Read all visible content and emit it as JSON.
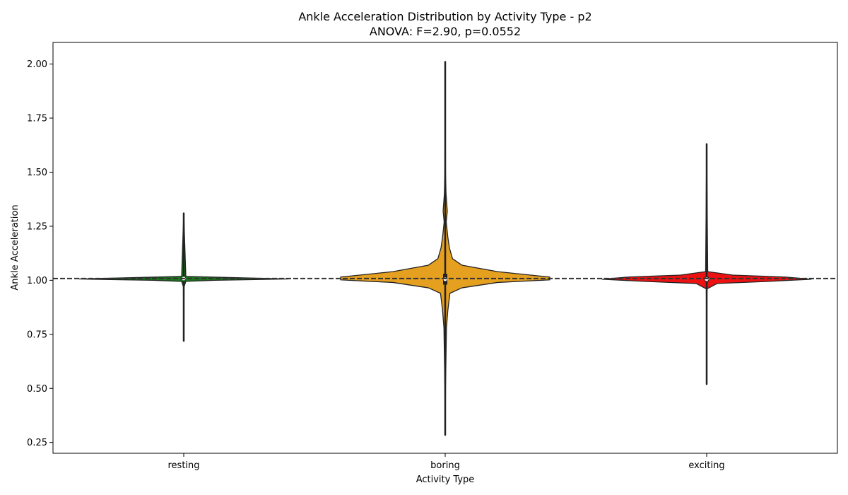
{
  "chart_data": {
    "type": "violin",
    "title": "Ankle Acceleration Distribution by Activity Type - p2",
    "subtitle": "ANOVA: F=2.90, p=0.0552",
    "xlabel": "Activity Type",
    "ylabel": "Ankle Acceleration",
    "categories": [
      "resting",
      "boring",
      "exciting"
    ],
    "ylim": [
      0.2,
      2.1
    ],
    "yticks": [
      0.25,
      0.5,
      0.75,
      1.0,
      1.25,
      1.5,
      1.75,
      2.0
    ],
    "ytick_labels": [
      "0.25",
      "0.50",
      "0.75",
      "1.00",
      "1.25",
      "1.50",
      "1.75",
      "2.00"
    ],
    "reference_line": {
      "value": 1.008,
      "style": "dashed",
      "color": "#333333"
    },
    "grid": false,
    "series": [
      {
        "category": "resting",
        "color": "#1a7a1a",
        "min": 0.72,
        "max": 1.31,
        "q1": 1.0,
        "median": 1.008,
        "q3": 1.015,
        "profile": [
          [
            0.72,
            0.0
          ],
          [
            0.97,
            0.003
          ],
          [
            0.995,
            0.02
          ],
          [
            1.0,
            0.3
          ],
          [
            1.006,
            1.0
          ],
          [
            1.012,
            0.5
          ],
          [
            1.018,
            0.02
          ],
          [
            1.31,
            0.0
          ]
        ]
      },
      {
        "category": "boring",
        "color": "#e6a020",
        "min": 0.285,
        "max": 2.01,
        "q1": 0.98,
        "median": 1.005,
        "q3": 1.03,
        "profile": [
          [
            0.285,
            0.0
          ],
          [
            0.5,
            0.003
          ],
          [
            0.78,
            0.012
          ],
          [
            0.86,
            0.025
          ],
          [
            0.94,
            0.045
          ],
          [
            0.965,
            0.16
          ],
          [
            0.99,
            0.5
          ],
          [
            1.002,
            1.0
          ],
          [
            1.015,
            1.0
          ],
          [
            1.04,
            0.5
          ],
          [
            1.07,
            0.16
          ],
          [
            1.1,
            0.07
          ],
          [
            1.15,
            0.04
          ],
          [
            1.2,
            0.025
          ],
          [
            1.27,
            0.01
          ],
          [
            1.32,
            0.02
          ],
          [
            1.4,
            0.008
          ],
          [
            1.5,
            0.003
          ],
          [
            2.01,
            0.0
          ]
        ]
      },
      {
        "category": "exciting",
        "color": "#ee1111",
        "min": 0.52,
        "max": 1.63,
        "q1": 0.995,
        "median": 1.005,
        "q3": 1.015,
        "profile": [
          [
            0.52,
            0.0
          ],
          [
            0.96,
            0.003
          ],
          [
            0.985,
            0.1
          ],
          [
            0.995,
            0.6
          ],
          [
            1.005,
            1.0
          ],
          [
            1.015,
            0.75
          ],
          [
            1.024,
            0.25
          ],
          [
            1.04,
            0.01
          ],
          [
            1.63,
            0.0
          ]
        ]
      }
    ]
  }
}
